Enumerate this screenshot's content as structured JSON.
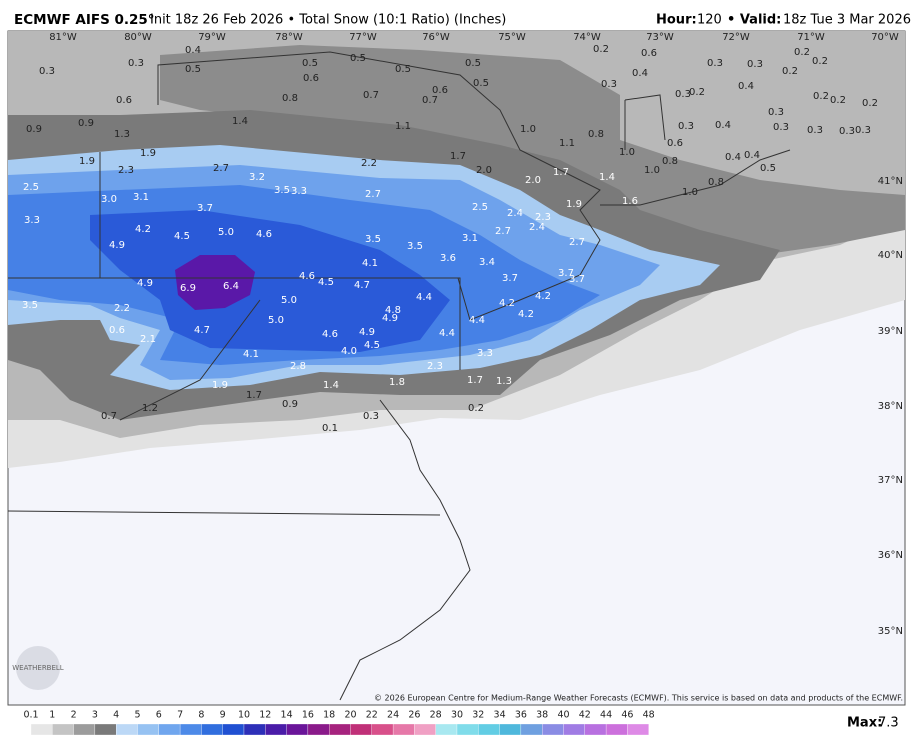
{
  "header": {
    "model": "ECMWF AIFS 0.25°",
    "description": "Init 18z 26 Feb 2026 • Total Snow (10:1 Ratio) (Inches)",
    "hour_label": "Hour:",
    "hour": "120",
    "valid_label": "• Valid:",
    "valid": "18z Tue 3 Mar 2026"
  },
  "map": {
    "lon_labels": [
      "81°W",
      "80°W",
      "79°W",
      "78°W",
      "77°W",
      "76°W",
      "75°W",
      "74°W",
      "73°W",
      "72°W",
      "71°W",
      "70°W"
    ],
    "lat_labels": [
      "41°N",
      "40°N",
      "39°N",
      "38°N",
      "37°N",
      "36°N",
      "35°N"
    ],
    "value_labels": [
      "0.3",
      "0.3",
      "0.4",
      "0.5",
      "0.5",
      "0.6",
      "0.5",
      "0.5",
      "0.5",
      "0.5",
      "0.2",
      "0.6",
      "0.4",
      "0.3",
      "0.3",
      "0.2",
      "0.2",
      "0.2",
      "0.3",
      "0.4",
      "0.3",
      "0.2",
      "0.2",
      "0.2",
      "0.2",
      "0.6",
      "0.8",
      "0.7",
      "0.7",
      "0.6",
      "0.9",
      "0.9",
      "1.3",
      "1.4",
      "1.1",
      "1.0",
      "0.8",
      "0.4",
      "0.3",
      "0.3",
      "0.3",
      "0.3",
      "0.3",
      "0.3",
      "0.6",
      "1.9",
      "1.9",
      "2.3",
      "2.7",
      "3.2",
      "2.2",
      "1.7",
      "2.0",
      "1.1",
      "1.0",
      "0.8",
      "1.0",
      "0.4",
      "0.4",
      "0.5",
      "2.5",
      "3.5",
      "3.3",
      "2.7",
      "2.0",
      "1.7",
      "1.4",
      "1.9",
      "1.6",
      "1.0",
      "0.8",
      "3.0",
      "3.1",
      "3.7",
      "2.5",
      "2.4",
      "2.3",
      "2.4",
      "2.7",
      "3.3",
      "4.2",
      "4.5",
      "5.0",
      "4.6",
      "3.5",
      "3.5",
      "3.1",
      "2.7",
      "4.9",
      "4.1",
      "3.6",
      "3.4",
      "3.7",
      "3.7",
      "3.7",
      "4.9",
      "6.9",
      "6.4",
      "4.6",
      "4.5",
      "4.7",
      "4.4",
      "4.2",
      "4.2",
      "4.2",
      "3.5",
      "2.2",
      "5.0",
      "5.0",
      "4.8",
      "4.9",
      "4.4",
      "4.4",
      "0.6",
      "2.1",
      "4.7",
      "4.6",
      "4.9",
      "4.5",
      "4.0",
      "3.3",
      "2.3",
      "4.1",
      "2.8",
      "1.4",
      "1.8",
      "1.7",
      "1.3",
      "1.9",
      "1.7",
      "0.9",
      "1.2",
      "0.7",
      "0.3",
      "0.2",
      "0.1"
    ],
    "logo": "WEATHERBELL",
    "copyright": "© 2026 European Centre for Medium-Range Weather Forecasts (ECMWF). This service is based on data and products of the ECMWF."
  },
  "colorbar": {
    "ticks": [
      "0.1",
      "1",
      "2",
      "3",
      "4",
      "5",
      "6",
      "7",
      "8",
      "9",
      "10",
      "12",
      "14",
      "16",
      "18",
      "20",
      "22",
      "24",
      "26",
      "28",
      "30",
      "32",
      "34",
      "36",
      "38",
      "40",
      "42",
      "44",
      "46",
      "48"
    ],
    "colors": [
      "#e6e6e6",
      "#c4c4c4",
      "#9c9c9c",
      "#7a7a7a",
      "#bcd8f6",
      "#96c2f2",
      "#70a6ee",
      "#4d8ae8",
      "#316ede",
      "#2050d2",
      "#2d2fb8",
      "#4a1ca8",
      "#6a1599",
      "#8a1a8a",
      "#a6237e",
      "#c03078",
      "#d8508a",
      "#e678a8",
      "#f0a0c4",
      "#a8e8f0",
      "#80dcea",
      "#62cde4",
      "#4fb8dc",
      "#6fa0e0",
      "#8a8ce4",
      "#a07ce4",
      "#b870e0",
      "#cc70dc",
      "#de8ae6"
    ],
    "max_label": "Max:",
    "max": "7.3"
  }
}
